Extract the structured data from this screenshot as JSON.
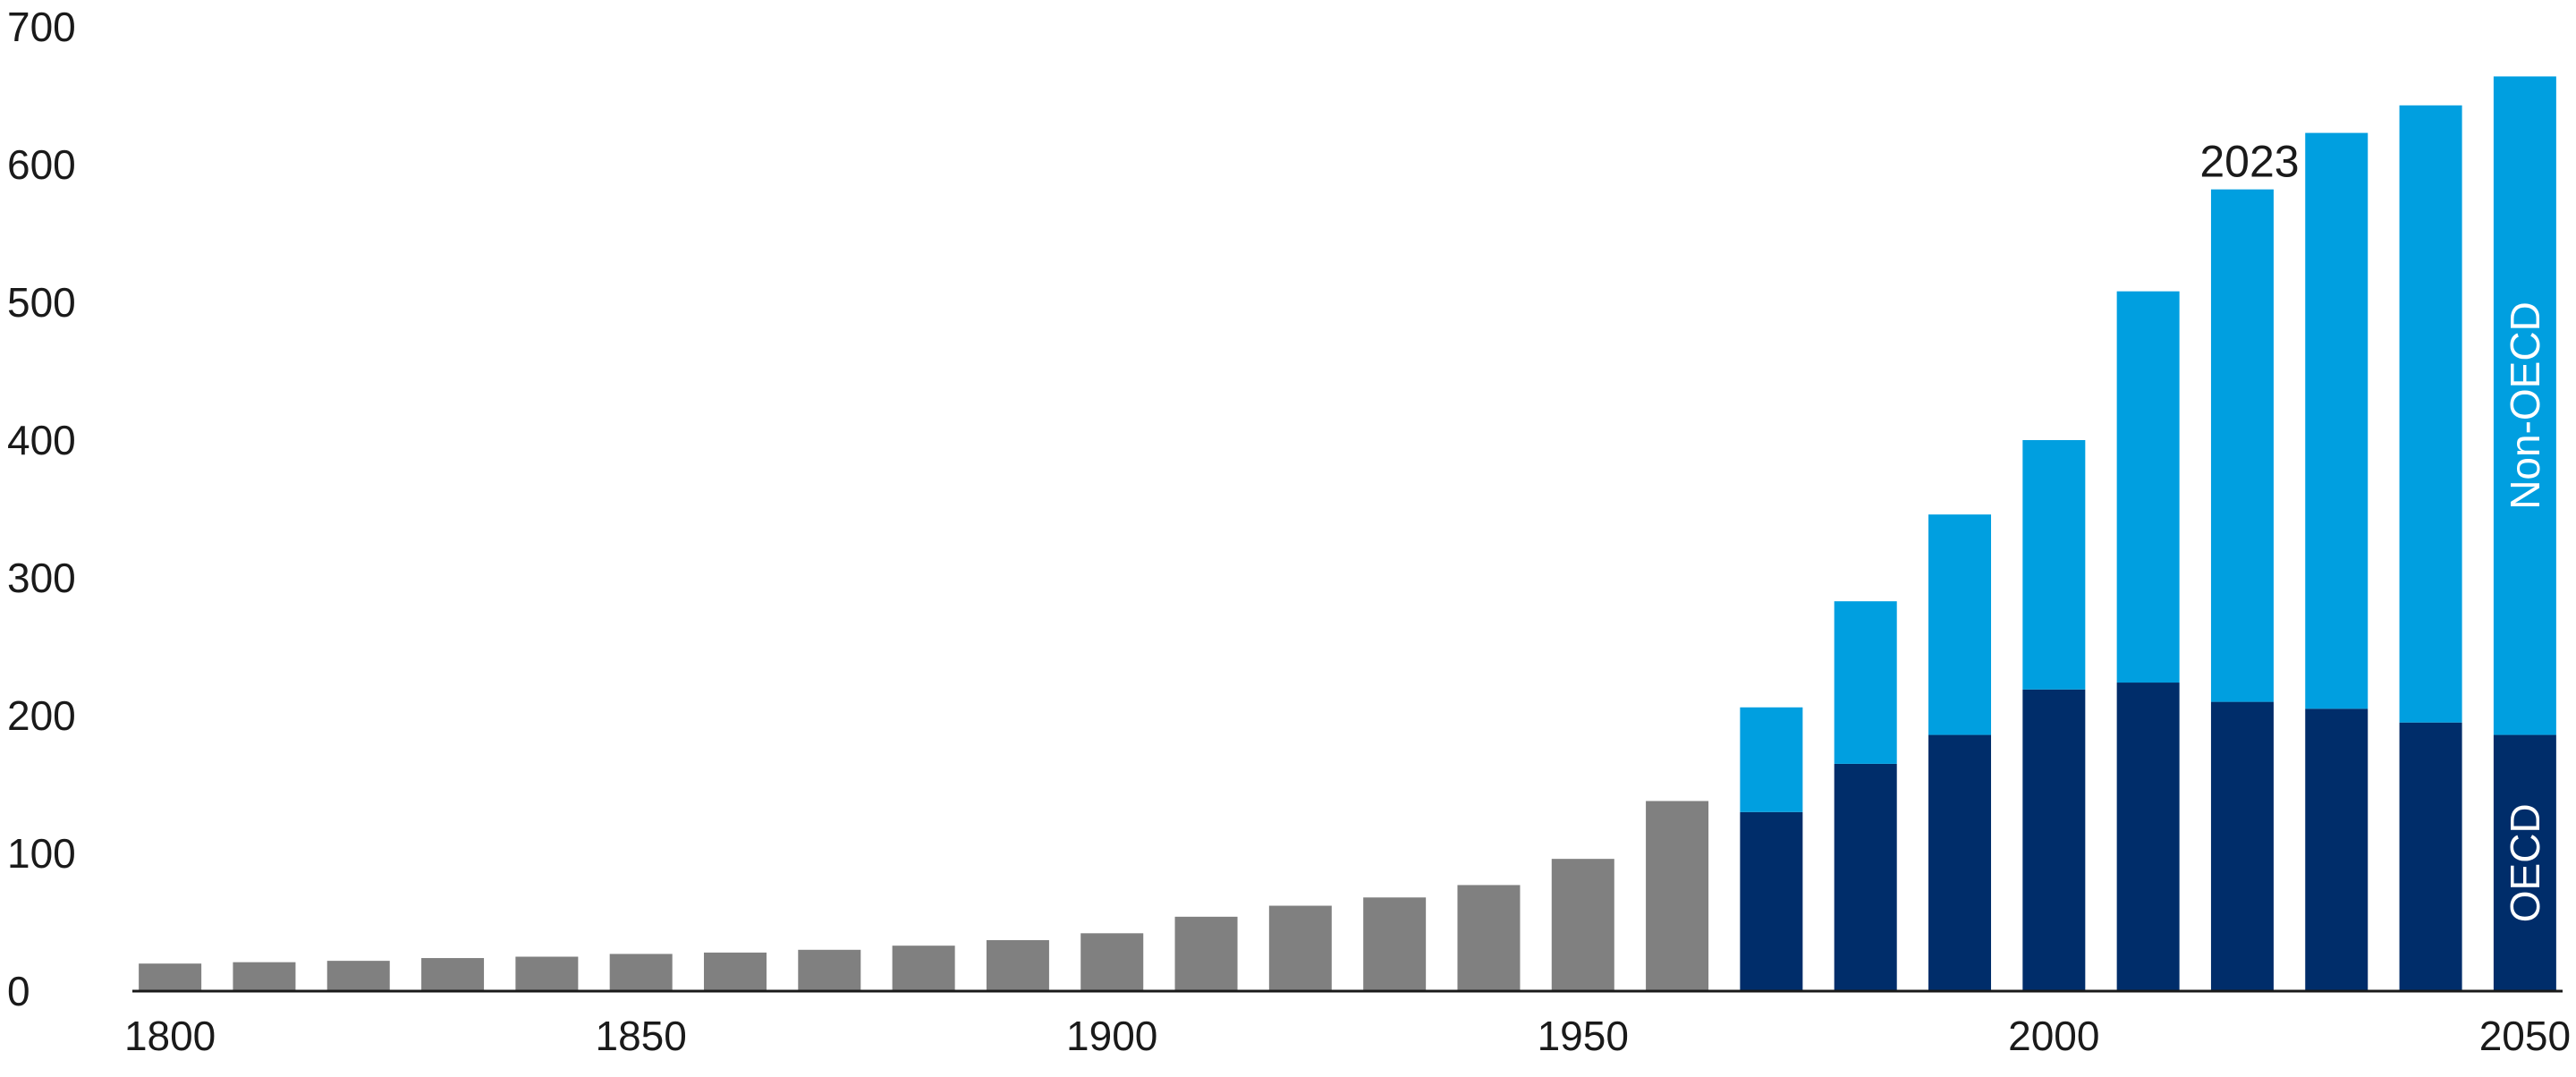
{
  "chart_data": {
    "type": "bar",
    "stacked": true,
    "x": [
      1800,
      1810,
      1820,
      1830,
      1840,
      1850,
      1860,
      1870,
      1880,
      1890,
      1900,
      1910,
      1920,
      1930,
      1940,
      1950,
      1960,
      1970,
      1980,
      1990,
      2000,
      2010,
      2020,
      2030,
      2040,
      2050
    ],
    "series": [
      {
        "key": "historical",
        "color": "#808080",
        "values": [
          20,
          21,
          22,
          24,
          25,
          27,
          28,
          30,
          33,
          37,
          42,
          54,
          62,
          68,
          77,
          96,
          138,
          null,
          null,
          null,
          null,
          null,
          null,
          null,
          null,
          null
        ]
      },
      {
        "key": "oecd",
        "name": "OECD",
        "color": "#002d6a",
        "values": [
          null,
          null,
          null,
          null,
          null,
          null,
          null,
          null,
          null,
          null,
          null,
          null,
          null,
          null,
          null,
          null,
          null,
          130,
          165,
          186,
          219,
          224,
          210,
          205,
          195,
          186
        ]
      },
      {
        "key": "non_oecd",
        "name": "Non-OECD",
        "color": "#009fe0",
        "values": [
          null,
          null,
          null,
          null,
          null,
          null,
          null,
          null,
          null,
          null,
          null,
          null,
          null,
          null,
          null,
          null,
          null,
          76,
          118,
          160,
          181,
          284,
          372,
          418,
          448,
          478
        ]
      }
    ],
    "annotation": {
      "text": "2023",
      "x": 2020
    },
    "y_ticks": [
      "0",
      "100",
      "200",
      "300",
      "400",
      "500",
      "600",
      "700"
    ],
    "x_ticks": [
      "1800",
      "1850",
      "1900",
      "1950",
      "2000",
      "2050"
    ],
    "ylim": [
      0,
      700
    ],
    "xlim": [
      1796,
      2054
    ],
    "grid": false,
    "legend": "in-bar labels"
  }
}
